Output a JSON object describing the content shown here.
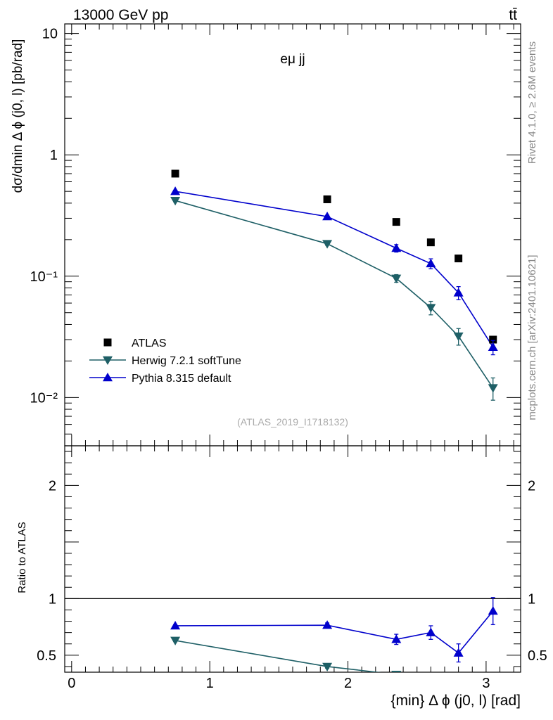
{
  "header": {
    "energy_label": "13000 GeV pp",
    "process_label": "tt̄"
  },
  "side": {
    "rivet_label": "Rivet 4.1.0, ≥ 2.6M events",
    "mcplots_label": "mcplots.cern.ch [arXiv:2401.10621]"
  },
  "colors": {
    "atlas": "#000000",
    "herwig": "#1e5f66",
    "pythia": "#0000cc"
  },
  "chart_data": [
    {
      "type": "scatter",
      "panel": "main",
      "title": "eμ jj",
      "watermark": "(ATLAS_2019_I1718132)",
      "ylabel": "dσ/dmin Δ ϕ (j0, l) [pb/rad]",
      "yscale": "log",
      "ylim": [
        0.004,
        12
      ],
      "xlim": [
        -0.05,
        3.25
      ],
      "y_tick_labels": [
        "10",
        "1",
        "10⁻¹",
        "10⁻²"
      ],
      "legend_position": "lower-left",
      "x": [
        0.75,
        1.85,
        2.35,
        2.6,
        2.8,
        3.05
      ],
      "series": [
        {
          "name": "ATLAS",
          "marker": "square",
          "line": false,
          "values": [
            0.7,
            0.43,
            0.28,
            0.19,
            0.14,
            0.03
          ],
          "errors": [
            0,
            0,
            0,
            0,
            0,
            0
          ]
        },
        {
          "name": "Herwig 7.2.1 softTune",
          "marker": "triangle-down",
          "line": true,
          "values": [
            0.42,
            0.185,
            0.096,
            0.055,
            0.032,
            0.012
          ],
          "errors": [
            0.01,
            0.005,
            0.007,
            0.007,
            0.005,
            0.0025
          ]
        },
        {
          "name": "Pythia 8.315 default",
          "marker": "triangle-up",
          "line": true,
          "values": [
            0.5,
            0.31,
            0.17,
            0.127,
            0.073,
            0.026
          ],
          "errors": [
            0.01,
            0.008,
            0.012,
            0.012,
            0.009,
            0.0035
          ]
        }
      ]
    },
    {
      "type": "scatter",
      "panel": "ratio",
      "ylabel": "Ratio to ATLAS",
      "xlabel": "{min} Δ ϕ (j0, l) [rad]",
      "xlim": [
        -0.05,
        3.25
      ],
      "ylim": [
        0.35,
        2.35
      ],
      "reference_line": 1,
      "x_tick_labels": [
        "0",
        "1",
        "2",
        "3"
      ],
      "y_tick_labels": [
        "2",
        "1",
        "0.5"
      ],
      "x": [
        0.75,
        1.85,
        2.35,
        2.6,
        2.8,
        3.05
      ],
      "series": [
        {
          "name": "Herwig 7.2.1 softTune",
          "marker": "triangle-down",
          "values": [
            0.63,
            0.4,
            0.33,
            null,
            null,
            null
          ],
          "errors": [
            0.01,
            0.015,
            0,
            0,
            0,
            0
          ]
        },
        {
          "name": "Pythia 8.315 default",
          "marker": "triangle-up",
          "values": [
            0.76,
            0.765,
            0.64,
            0.7,
            0.52,
            0.89
          ],
          "errors": [
            0.01,
            0.02,
            0.045,
            0.06,
            0.08,
            0.12
          ]
        }
      ]
    }
  ]
}
